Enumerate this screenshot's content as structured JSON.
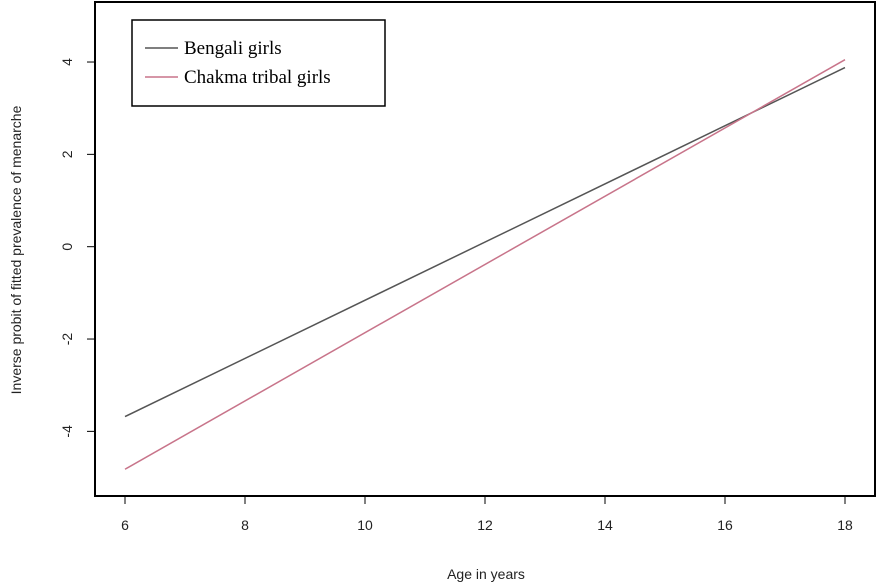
{
  "chart_data": {
    "type": "line",
    "title": "",
    "xlabel": "Age in years",
    "ylabel": "Inverse probit of fitted prevalence of menarche",
    "xlim": [
      5.5,
      18.5
    ],
    "ylim": [
      -5.4,
      5.3
    ],
    "xticks": [
      6,
      8,
      10,
      12,
      14,
      16,
      18
    ],
    "yticks": [
      -4,
      -2,
      0,
      2,
      4
    ],
    "grid": false,
    "legend_position": "top-left",
    "series": [
      {
        "name": "Bengali girls",
        "color": "#555555",
        "x": [
          6,
          18
        ],
        "y": [
          -3.68,
          3.88
        ]
      },
      {
        "name": "Chakma tribal girls",
        "color": "#c8748a",
        "x": [
          6,
          18
        ],
        "y": [
          -4.82,
          4.05
        ]
      }
    ]
  }
}
